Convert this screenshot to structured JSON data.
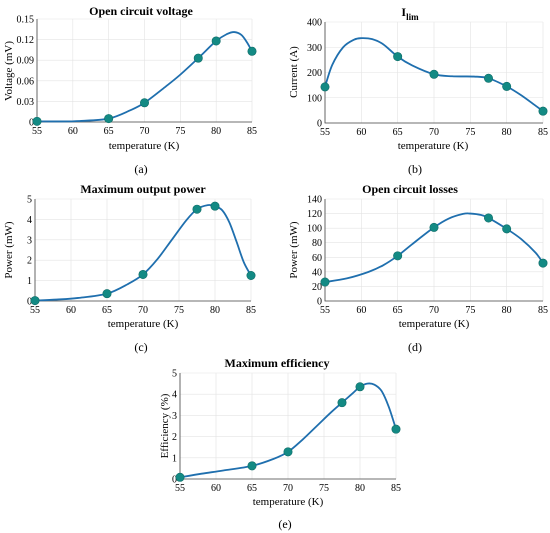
{
  "chart_data": [
    {
      "type": "line",
      "panel": "a",
      "title": "Open circuit voltage",
      "title_sub": "",
      "xlabel": "temperature (K)",
      "ylabel": "Voltage (mV)",
      "caption": "(a)",
      "xlim": [
        55,
        85
      ],
      "ylim": [
        0,
        0.15
      ],
      "xticks": [
        55,
        60,
        65,
        70,
        75,
        80,
        85
      ],
      "yticks": [
        0,
        0.03,
        0.06,
        0.09,
        0.12,
        0.15
      ],
      "ytick_labels": [
        "0",
        "0.03",
        "0.06",
        "0.09",
        "0.12",
        "0.15"
      ],
      "points": [
        [
          55,
          0.001
        ],
        [
          65,
          0.005
        ],
        [
          70,
          0.028
        ],
        [
          77.5,
          0.093
        ],
        [
          80,
          0.118
        ],
        [
          85,
          0.103
        ]
      ],
      "curve": [
        [
          55,
          0.001
        ],
        [
          58,
          0.0008
        ],
        [
          61,
          0.0015
        ],
        [
          65,
          0.005
        ],
        [
          68,
          0.017
        ],
        [
          70,
          0.028
        ],
        [
          73,
          0.052
        ],
        [
          75,
          0.069
        ],
        [
          77.5,
          0.093
        ],
        [
          80,
          0.118
        ],
        [
          81.5,
          0.128
        ],
        [
          82.5,
          0.131
        ],
        [
          83.5,
          0.127
        ],
        [
          84.3,
          0.116
        ],
        [
          85,
          0.103
        ]
      ]
    },
    {
      "type": "line",
      "panel": "b",
      "title": "I",
      "title_sub": "lim",
      "xlabel": "temperature (K)",
      "ylabel": "Current (A)",
      "caption": "(b)",
      "xlim": [
        55,
        85
      ],
      "ylim": [
        0,
        400
      ],
      "xticks": [
        55,
        60,
        65,
        70,
        75,
        80,
        85
      ],
      "yticks": [
        0,
        100,
        200,
        300,
        400
      ],
      "ytick_labels": [
        "0",
        "100",
        "200",
        "300",
        "400"
      ],
      "points": [
        [
          55,
          143
        ],
        [
          65,
          263
        ],
        [
          70,
          193
        ],
        [
          77.5,
          177
        ],
        [
          80,
          145
        ],
        [
          85,
          47
        ]
      ],
      "curve": [
        [
          55,
          143
        ],
        [
          56,
          230
        ],
        [
          57.5,
          300
        ],
        [
          59,
          330
        ],
        [
          60,
          336
        ],
        [
          61.5,
          332
        ],
        [
          63,
          312
        ],
        [
          65,
          263
        ],
        [
          67,
          228
        ],
        [
          70,
          193
        ],
        [
          72.5,
          185
        ],
        [
          75.5,
          184
        ],
        [
          77.5,
          177
        ],
        [
          80,
          145
        ],
        [
          82,
          110
        ],
        [
          84,
          68
        ],
        [
          85,
          47
        ]
      ]
    },
    {
      "type": "line",
      "panel": "c",
      "title": "Maximum output power",
      "title_sub": "",
      "xlabel": "temperature (K)",
      "ylabel": "Power (mW)",
      "caption": "(c)",
      "xlim": [
        55,
        85
      ],
      "ylim": [
        0,
        5
      ],
      "xticks": [
        55,
        60,
        65,
        70,
        75,
        80,
        85
      ],
      "yticks": [
        0,
        1,
        2,
        3,
        4,
        5
      ],
      "ytick_labels": [
        "0",
        "1",
        "2",
        "3",
        "4",
        "5"
      ],
      "points": [
        [
          55,
          0.02
        ],
        [
          65,
          0.36
        ],
        [
          70,
          1.3
        ],
        [
          77.5,
          4.5
        ],
        [
          80,
          4.65
        ],
        [
          85,
          1.25
        ]
      ],
      "curve": [
        [
          55,
          0.02
        ],
        [
          58,
          0.07
        ],
        [
          61,
          0.15
        ],
        [
          65,
          0.36
        ],
        [
          68,
          0.85
        ],
        [
          70,
          1.3
        ],
        [
          72,
          2.05
        ],
        [
          74,
          3.0
        ],
        [
          76,
          3.95
        ],
        [
          77.5,
          4.5
        ],
        [
          79,
          4.7
        ],
        [
          80,
          4.65
        ],
        [
          81,
          4.45
        ],
        [
          82,
          3.85
        ],
        [
          83,
          2.9
        ],
        [
          84,
          1.9
        ],
        [
          85,
          1.25
        ]
      ]
    },
    {
      "type": "line",
      "panel": "d",
      "title": "Open circuit losses",
      "title_sub": "",
      "xlabel": "temperature (K)",
      "ylabel": "Power (mW)",
      "caption": "(d)",
      "xlim": [
        55,
        85
      ],
      "ylim": [
        0,
        140
      ],
      "xticks": [
        55,
        60,
        65,
        70,
        75,
        80,
        85
      ],
      "yticks": [
        0,
        20,
        40,
        60,
        80,
        100,
        120,
        140
      ],
      "ytick_labels": [
        "0",
        "20",
        "40",
        "60",
        "80",
        "100",
        "120",
        "140"
      ],
      "points": [
        [
          55,
          26
        ],
        [
          65,
          62
        ],
        [
          70,
          101
        ],
        [
          77.5,
          114
        ],
        [
          80,
          99
        ],
        [
          85,
          52
        ]
      ],
      "curve": [
        [
          55,
          26
        ],
        [
          58,
          31
        ],
        [
          61,
          40
        ],
        [
          63,
          49
        ],
        [
          65,
          62
        ],
        [
          67,
          78
        ],
        [
          70,
          101
        ],
        [
          72,
          113
        ],
        [
          74,
          119.5
        ],
        [
          75,
          120
        ],
        [
          76.5,
          118
        ],
        [
          77.5,
          114
        ],
        [
          80,
          99
        ],
        [
          82,
          85
        ],
        [
          84,
          66
        ],
        [
          85,
          52
        ]
      ]
    },
    {
      "type": "line",
      "panel": "e",
      "title": "Maximum efficiency",
      "title_sub": "",
      "xlabel": "temperature (K)",
      "ylabel": "Efficiency (%)",
      "caption": "(e)",
      "xlim": [
        55,
        85
      ],
      "ylim": [
        0,
        5
      ],
      "xticks": [
        55,
        60,
        65,
        70,
        75,
        80,
        85
      ],
      "yticks": [
        0,
        1,
        2,
        3,
        4,
        5
      ],
      "ytick_labels": [
        "0",
        "1",
        "2",
        "3",
        "4",
        "5"
      ],
      "points": [
        [
          55,
          0.08
        ],
        [
          65,
          0.62
        ],
        [
          70,
          1.28
        ],
        [
          77.5,
          3.6
        ],
        [
          80,
          4.35
        ],
        [
          85,
          2.35
        ]
      ],
      "curve": [
        [
          55,
          0.08
        ],
        [
          58,
          0.25
        ],
        [
          61,
          0.4
        ],
        [
          65,
          0.62
        ],
        [
          68,
          0.95
        ],
        [
          70,
          1.28
        ],
        [
          72,
          1.85
        ],
        [
          74,
          2.5
        ],
        [
          76,
          3.15
        ],
        [
          77.5,
          3.6
        ],
        [
          79,
          4.05
        ],
        [
          80,
          4.35
        ],
        [
          81,
          4.5
        ],
        [
          82,
          4.45
        ],
        [
          83,
          4.15
        ],
        [
          84,
          3.4
        ],
        [
          85,
          2.35
        ]
      ]
    }
  ]
}
